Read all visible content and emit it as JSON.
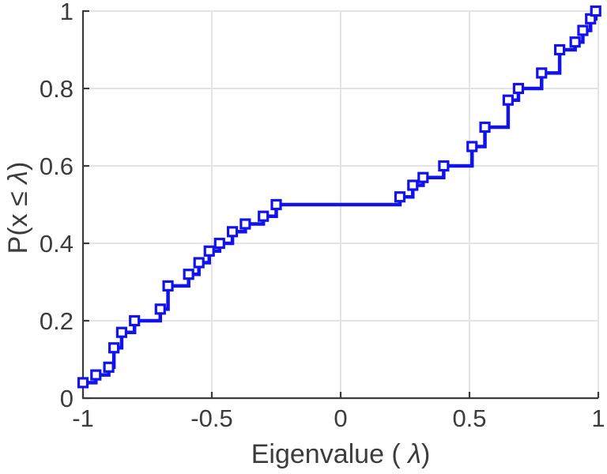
{
  "chart_data": {
    "type": "line",
    "subtype": "empirical-cdf-stairs",
    "title": "",
    "xlabel": "Eigenvalue ( λ)",
    "ylabel": "P(x ≤ λ)",
    "xlabel_parts": [
      {
        "text": "Eigenvalue ( ",
        "italic": false
      },
      {
        "text": "λ",
        "italic": true
      },
      {
        "text": ")",
        "italic": false
      }
    ],
    "ylabel_parts": [
      {
        "text": "P(x ",
        "italic": false
      },
      {
        "text": "≤",
        "italic": false
      },
      {
        "text": " ",
        "italic": false
      },
      {
        "text": "λ",
        "italic": true
      },
      {
        "text": ")",
        "italic": false
      }
    ],
    "xlim": [
      -1,
      1
    ],
    "ylim": [
      0,
      1
    ],
    "grid": true,
    "legend_position": "none",
    "x_ticks": [
      -1,
      -0.5,
      0,
      0.5,
      1
    ],
    "x_tick_labels": [
      "-1",
      "-0.5",
      "0",
      "0.5",
      "1"
    ],
    "y_ticks": [
      0,
      0.2,
      0.4,
      0.6,
      0.8,
      1
    ],
    "y_tick_labels": [
      "0",
      "0.2",
      "0.4",
      "0.6",
      "0.8",
      "1"
    ],
    "colors": {
      "line": "#1212EA",
      "marker_face": "#ffffff",
      "axis": "#3b3b3b",
      "grid": "#e4e4e4",
      "label": "#3c3c3c"
    },
    "flat_segment": {
      "from_x": -0.25,
      "to_x": 0.23,
      "p": 0.5
    },
    "series": [
      {
        "name": "eigenvalue-ecdf",
        "marker": "open-square",
        "points": [
          [
            -1.0,
            0.04
          ],
          [
            -0.95,
            0.06
          ],
          [
            -0.9,
            0.08
          ],
          [
            -0.88,
            0.13
          ],
          [
            -0.85,
            0.17
          ],
          [
            -0.8,
            0.2
          ],
          [
            -0.7,
            0.23
          ],
          [
            -0.67,
            0.29
          ],
          [
            -0.59,
            0.32
          ],
          [
            -0.55,
            0.35
          ],
          [
            -0.51,
            0.38
          ],
          [
            -0.47,
            0.4
          ],
          [
            -0.42,
            0.43
          ],
          [
            -0.37,
            0.45
          ],
          [
            -0.3,
            0.47
          ],
          [
            -0.25,
            0.5
          ],
          [
            0.23,
            0.52
          ],
          [
            0.28,
            0.55
          ],
          [
            0.32,
            0.57
          ],
          [
            0.4,
            0.6
          ],
          [
            0.51,
            0.65
          ],
          [
            0.56,
            0.7
          ],
          [
            0.65,
            0.77
          ],
          [
            0.69,
            0.8
          ],
          [
            0.78,
            0.84
          ],
          [
            0.85,
            0.9
          ],
          [
            0.91,
            0.92
          ],
          [
            0.94,
            0.95
          ],
          [
            0.97,
            0.98
          ],
          [
            0.99,
            1.0
          ]
        ]
      }
    ]
  }
}
